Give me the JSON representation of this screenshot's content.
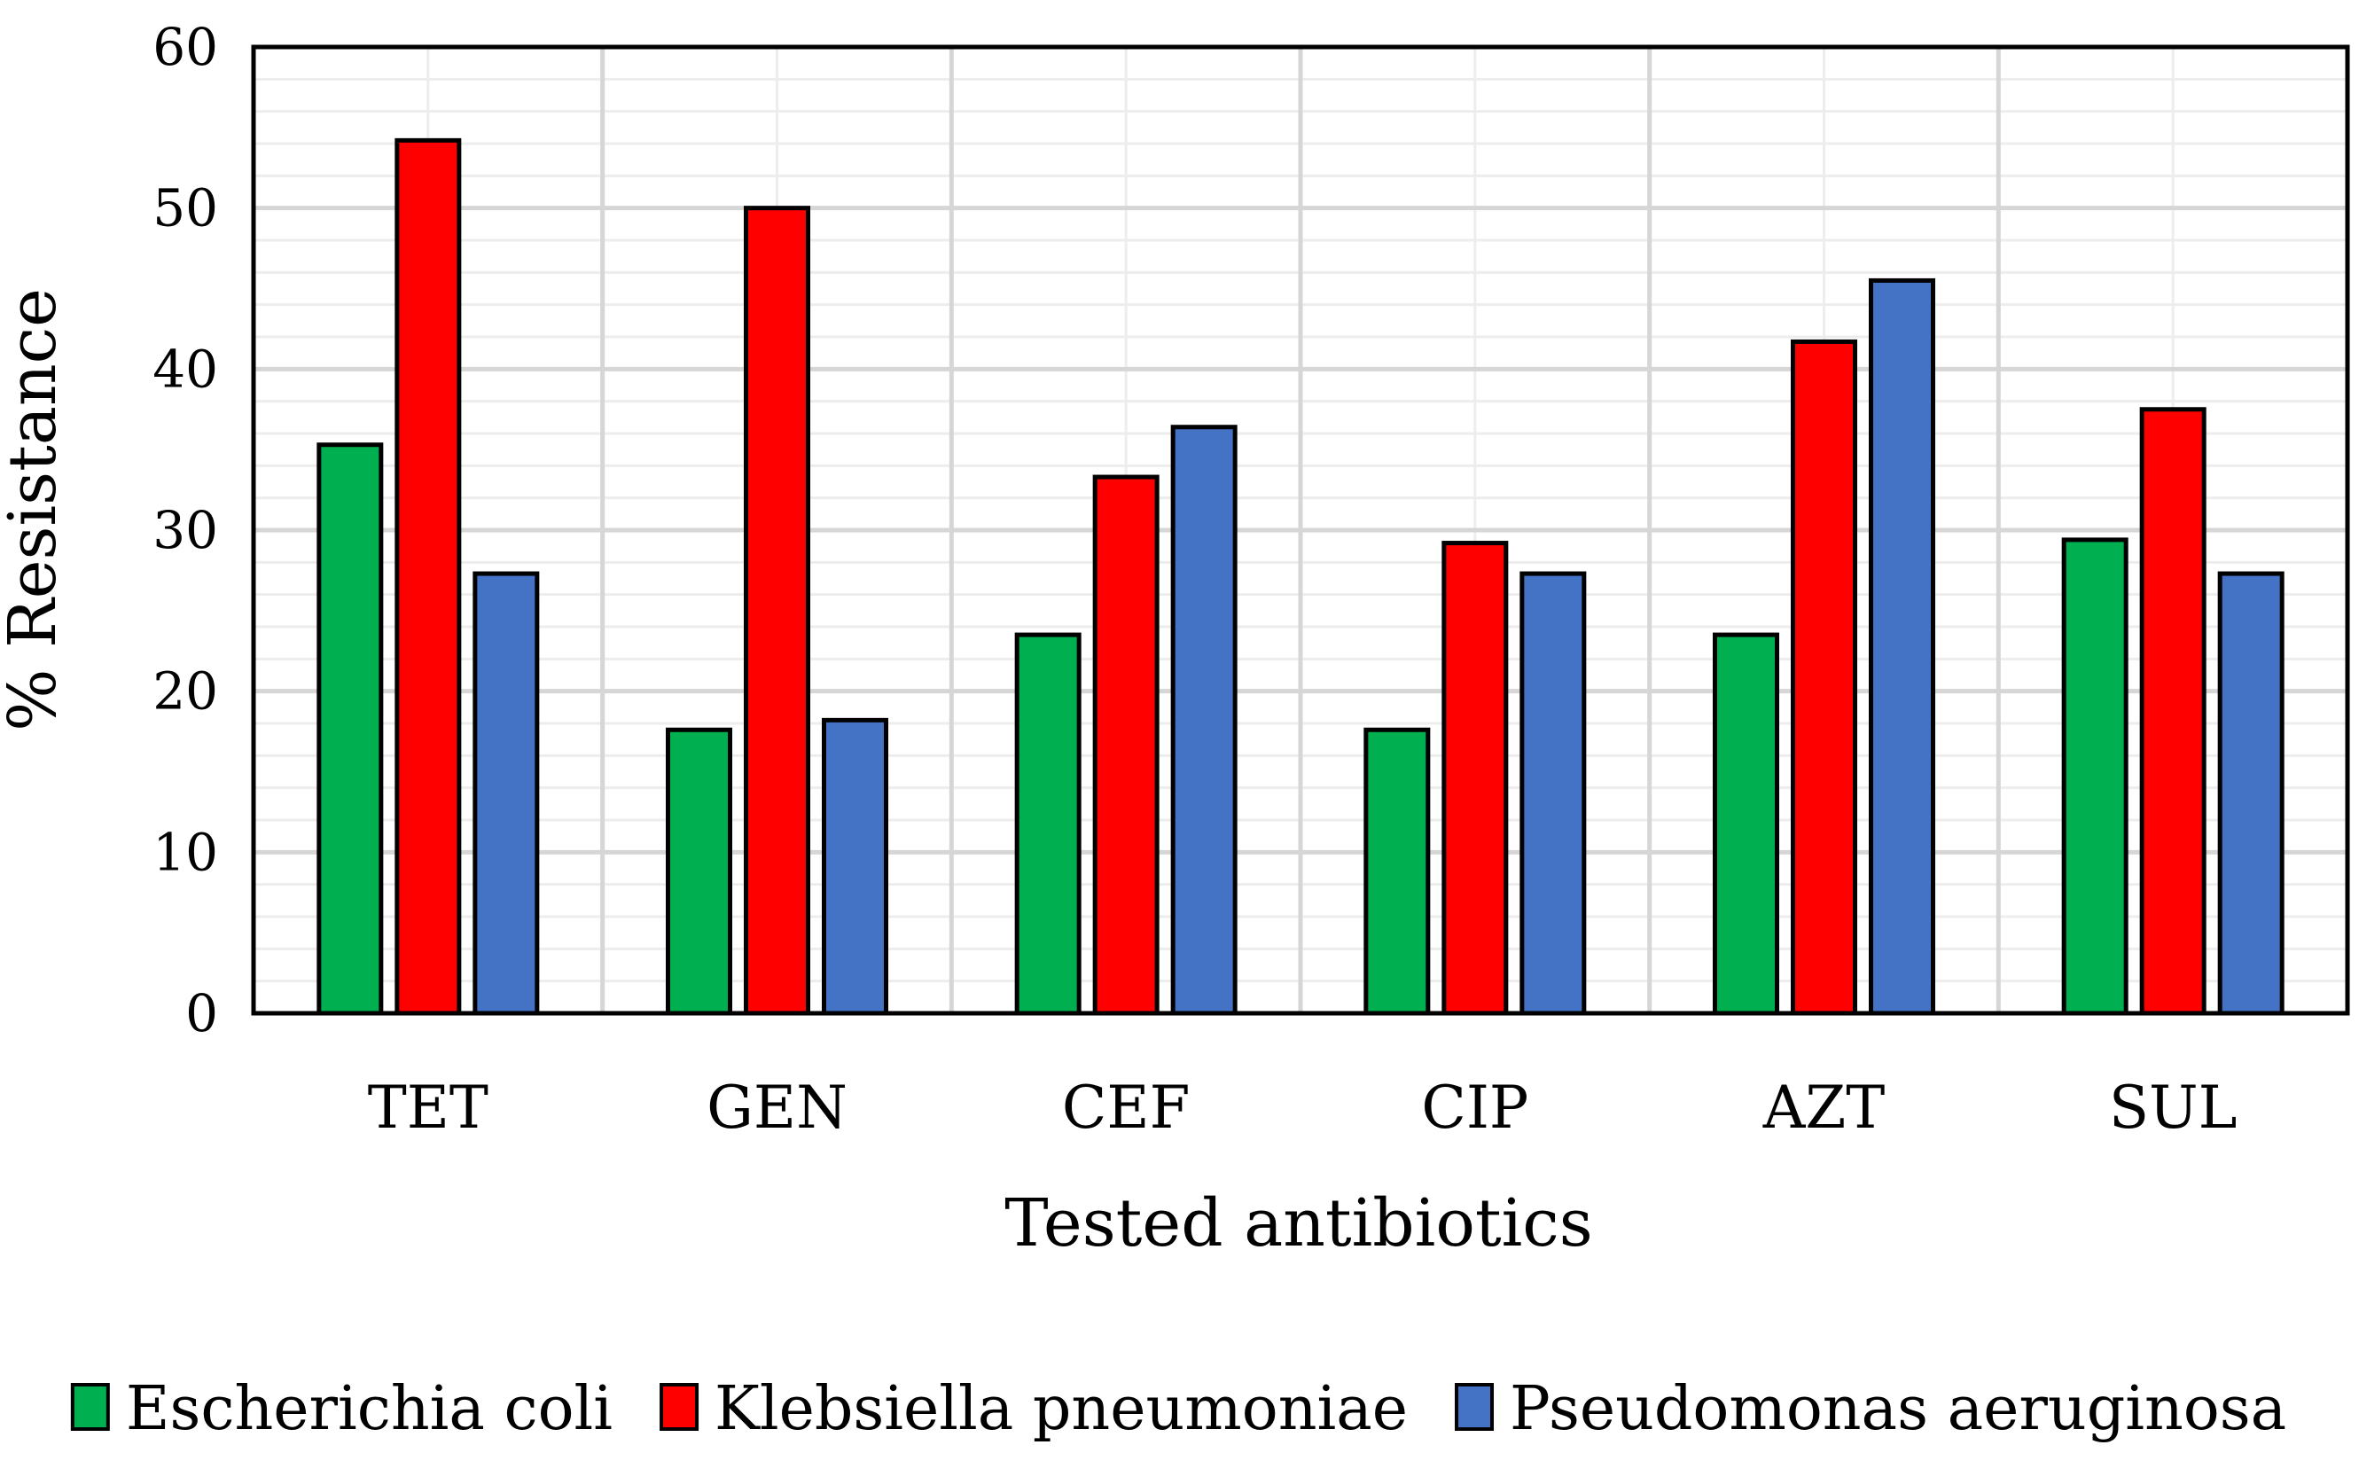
{
  "chart_data": {
    "type": "bar",
    "title": "",
    "xlabel": "Tested antibiotics",
    "ylabel": "% Resistance",
    "ylim": [
      0,
      60
    ],
    "yticks": [
      "0",
      "10",
      "20",
      "30",
      "40",
      "50",
      "60"
    ],
    "categories": [
      "TET",
      "GEN",
      "CEF",
      "CIP",
      "AZT",
      "SUL"
    ],
    "series": [
      {
        "name": "Escherichia coli",
        "color": "#00b050",
        "values": [
          35.3,
          17.6,
          23.5,
          17.6,
          23.5,
          29.4
        ]
      },
      {
        "name": "Klebsiella pneumoniae",
        "color": "#ff0000",
        "values": [
          54.2,
          50.0,
          33.3,
          29.2,
          41.7,
          37.5
        ]
      },
      {
        "name": "Pseudomonas aeruginosa",
        "color": "#4472c4",
        "values": [
          27.3,
          18.2,
          36.4,
          27.3,
          45.5,
          27.3
        ]
      }
    ],
    "grid": true,
    "legend_position": "bottom"
  }
}
